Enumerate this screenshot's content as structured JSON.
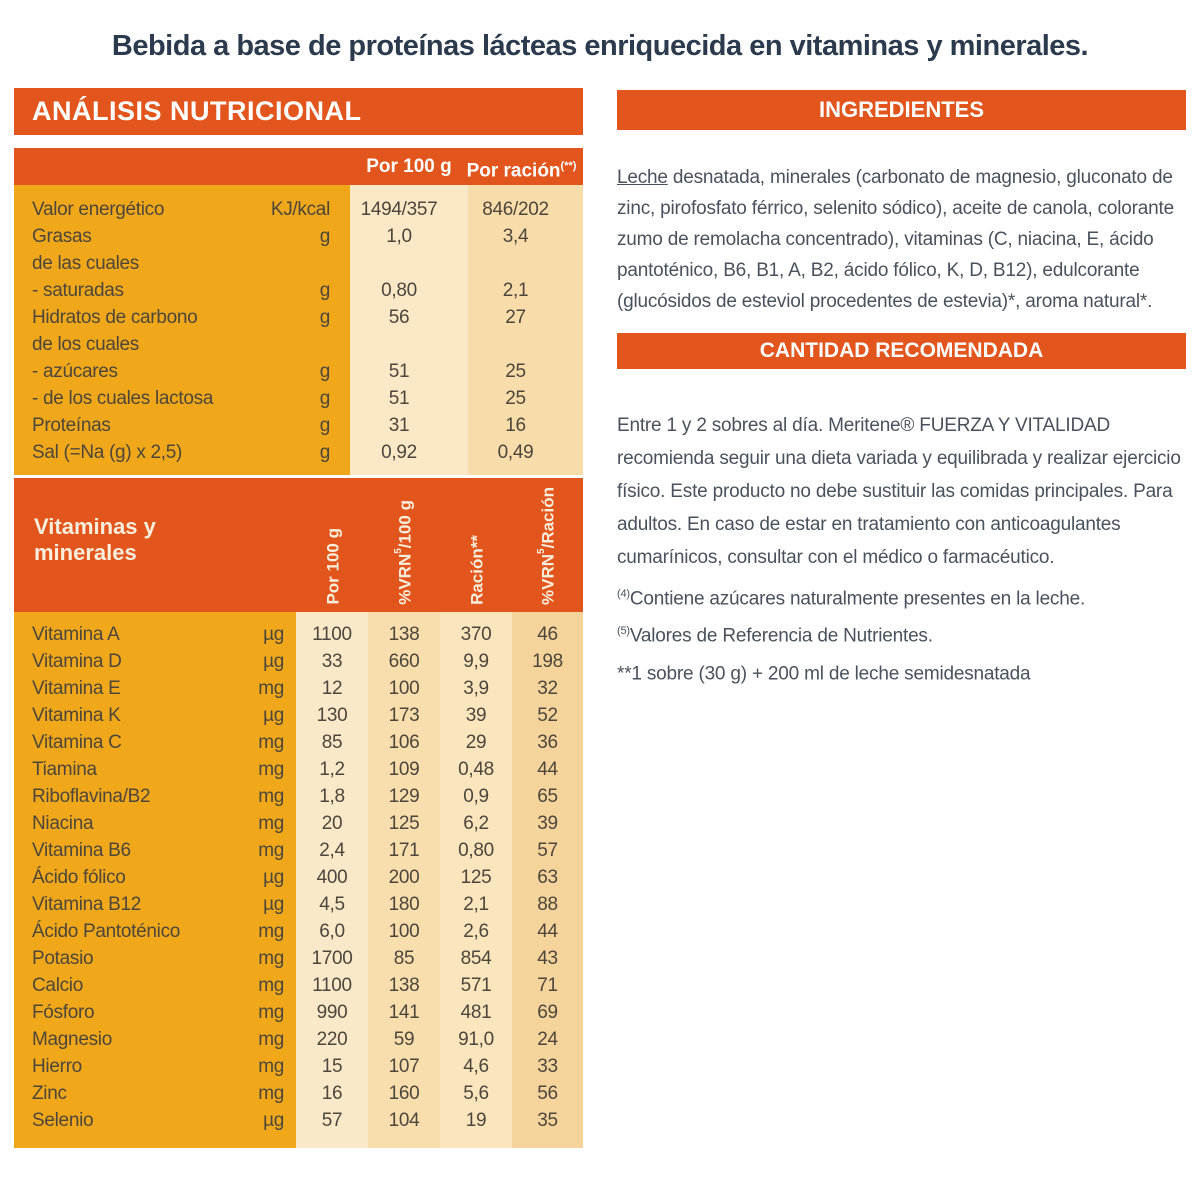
{
  "title": "Bebida a base de proteínas lácteas enriquecida en vitaminas y minerales.",
  "colors": {
    "orange": "#E2551C",
    "gold": "#F0A81A",
    "cream": "#FAE8C6",
    "peach": "#F8DCAA",
    "peach_dark": "#F5D49B",
    "title_navy": "#2C3A4E",
    "body_text": "#49525C",
    "table_text": "#4C463C"
  },
  "nutrition": {
    "header": "ANÁLISIS NUTRICIONAL",
    "columns": {
      "per100": "Por 100 g",
      "racion": "Por ración",
      "racion_sup": "(**)"
    },
    "rows": [
      {
        "label": "Valor energético",
        "unit": "KJ/kcal",
        "per100": "1494/357",
        "racion": "846/202"
      },
      {
        "label": "Grasas",
        "unit": "g",
        "per100": "1,0",
        "racion": "3,4"
      },
      {
        "label": "de las cuales",
        "unit": "",
        "per100": "",
        "racion": ""
      },
      {
        "label": "- saturadas",
        "unit": "g",
        "per100": "0,80",
        "racion": "2,1"
      },
      {
        "label": "Hidratos de carbono",
        "unit": "g",
        "per100": "56",
        "racion": "27"
      },
      {
        "label": "de los cuales",
        "unit": "",
        "per100": "",
        "racion": ""
      },
      {
        "label": "- azúcares",
        "unit": "g",
        "per100": "51",
        "racion": "25"
      },
      {
        "label": "- de los cuales lactosa",
        "unit": "g",
        "per100": "51",
        "racion": "25"
      },
      {
        "label": "Proteínas",
        "unit": "g",
        "per100": "31",
        "racion": "16"
      },
      {
        "label": "Sal (=Na (g) x 2,5)",
        "unit": "g",
        "per100": "0,92",
        "racion": "0,49"
      }
    ]
  },
  "vitamins": {
    "title_line1": "Vitaminas y",
    "title_line2": "minerales",
    "columns": [
      {
        "pre": "Por 100 g",
        "sup": "",
        "post": ""
      },
      {
        "pre": "%VRN",
        "sup": "5",
        "post": "/100 g"
      },
      {
        "pre": "Ración**",
        "sup": "",
        "post": ""
      },
      {
        "pre": "%VRN",
        "sup": "5",
        "post": "/Ración"
      }
    ],
    "rows": [
      {
        "label": "Vitamina A",
        "unit": "µg",
        "per100": "1100",
        "vrn100": "138",
        "racion": "370",
        "vrnracion": "46"
      },
      {
        "label": "Vitamina D",
        "unit": "µg",
        "per100": "33",
        "vrn100": "660",
        "racion": "9,9",
        "vrnracion": "198"
      },
      {
        "label": "Vitamina E",
        "unit": "mg",
        "per100": "12",
        "vrn100": "100",
        "racion": "3,9",
        "vrnracion": "32"
      },
      {
        "label": "Vitamina K",
        "unit": "µg",
        "per100": "130",
        "vrn100": "173",
        "racion": "39",
        "vrnracion": "52"
      },
      {
        "label": "Vitamina C",
        "unit": "mg",
        "per100": "85",
        "vrn100": "106",
        "racion": "29",
        "vrnracion": "36"
      },
      {
        "label": "Tiamina",
        "unit": "mg",
        "per100": "1,2",
        "vrn100": "109",
        "racion": "0,48",
        "vrnracion": "44"
      },
      {
        "label": "Riboflavina/B2",
        "unit": "mg",
        "per100": "1,8",
        "vrn100": "129",
        "racion": "0,9",
        "vrnracion": "65"
      },
      {
        "label": "Niacina",
        "unit": "mg",
        "per100": "20",
        "vrn100": "125",
        "racion": "6,2",
        "vrnracion": "39"
      },
      {
        "label": "Vitamina B6",
        "unit": "mg",
        "per100": "2,4",
        "vrn100": "171",
        "racion": "0,80",
        "vrnracion": "57"
      },
      {
        "label": "Ácido fólico",
        "unit": "µg",
        "per100": "400",
        "vrn100": "200",
        "racion": "125",
        "vrnracion": "63"
      },
      {
        "label": "Vitamina B12",
        "unit": "µg",
        "per100": "4,5",
        "vrn100": "180",
        "racion": "2,1",
        "vrnracion": "88"
      },
      {
        "label": "Ácido Pantoténico",
        "unit": "mg",
        "per100": "6,0",
        "vrn100": "100",
        "racion": "2,6",
        "vrnracion": "44"
      },
      {
        "label": "Potasio",
        "unit": "mg",
        "per100": "1700",
        "vrn100": "85",
        "racion": "854",
        "vrnracion": "43"
      },
      {
        "label": "Calcio",
        "unit": "mg",
        "per100": "1100",
        "vrn100": "138",
        "racion": "571",
        "vrnracion": "71"
      },
      {
        "label": "Fósforo",
        "unit": "mg",
        "per100": "990",
        "vrn100": "141",
        "racion": "481",
        "vrnracion": "69"
      },
      {
        "label": "Magnesio",
        "unit": "mg",
        "per100": "220",
        "vrn100": "59",
        "racion": "91,0",
        "vrnracion": "24"
      },
      {
        "label": "Hierro",
        "unit": "mg",
        "per100": "15",
        "vrn100": "107",
        "racion": "4,6",
        "vrnracion": "33"
      },
      {
        "label": "Zinc",
        "unit": "mg",
        "per100": "16",
        "vrn100": "160",
        "racion": "5,6",
        "vrnracion": "56"
      },
      {
        "label": "Selenio",
        "unit": "µg",
        "per100": "57",
        "vrn100": "104",
        "racion": "19",
        "vrnracion": "35"
      }
    ]
  },
  "ingredients": {
    "header": "INGREDIENTES",
    "allergen": "Leche",
    "text": " desnatada, minerales (carbonato de magnesio, gluconato de zinc, pirofosfato férrico, selenito sódico), aceite de canola, colorante zumo de remolacha concentrado), vitaminas (C, niacina, E, ácido pantoténico, B6, B1, A, B2, ácido fólico, K, D, B12), edulcorante (glucósidos de esteviol procedentes de estevia)*, aroma natural*."
  },
  "recommended": {
    "header": "CANTIDAD RECOMENDADA",
    "text": "Entre 1 y 2 sobres al día. Meritene® FUERZA Y VITALIDAD recomienda seguir una dieta variada y equilibrada y realizar ejercicio físico. Este producto no debe sustituir las comidas principales. Para adultos. En caso de estar en tratamiento con anticoagulantes cumarínicos, consultar con el médico o farmacéutico."
  },
  "footnotes": [
    {
      "sup": "(4)",
      "text": "Contiene azúcares naturalmente presentes en la leche."
    },
    {
      "sup": "(5)",
      "text": "Valores de Referencia de Nutrientes."
    },
    {
      "sup": "",
      "text": "**1 sobre (30 g) + 200 ml de leche semidesnatada"
    }
  ]
}
